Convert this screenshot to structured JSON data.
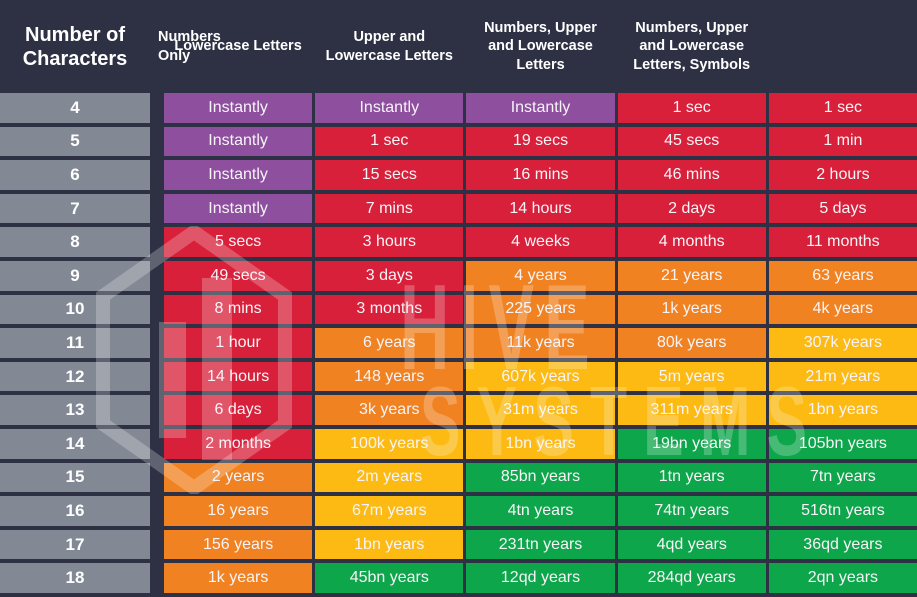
{
  "colors": {
    "background_navy": "#2d3143",
    "char_column_gray": "#828894",
    "instant": "#8d4f9e",
    "danger": "#d8203a",
    "warn": "#f08222",
    "caution": "#fcba12",
    "safe": "#0ea64b",
    "text": "#f7f4f8"
  },
  "watermark": {
    "logo": "hive-hexagon-logo",
    "word1": "HIVE",
    "word2": "SYSTEMS"
  },
  "chart_data": {
    "type": "table",
    "columns": [
      "Number of Characters",
      "Numbers Only",
      "Lowercase Letters",
      "Upper and Lowercase Letters",
      "Numbers, Upper and Lowercase Letters",
      "Numbers, Upper and Lowercase Letters, Symbols"
    ],
    "rows": [
      {
        "chars": "4",
        "cells": [
          {
            "text": "Instantly",
            "level": "instant"
          },
          {
            "text": "Instantly",
            "level": "instant"
          },
          {
            "text": "Instantly",
            "level": "instant"
          },
          {
            "text": "1 sec",
            "level": "danger"
          },
          {
            "text": "1 sec",
            "level": "danger"
          }
        ]
      },
      {
        "chars": "5",
        "cells": [
          {
            "text": "Instantly",
            "level": "instant"
          },
          {
            "text": "1 sec",
            "level": "danger"
          },
          {
            "text": "19 secs",
            "level": "danger"
          },
          {
            "text": "45 secs",
            "level": "danger"
          },
          {
            "text": "1 min",
            "level": "danger"
          }
        ]
      },
      {
        "chars": "6",
        "cells": [
          {
            "text": "Instantly",
            "level": "instant"
          },
          {
            "text": "15 secs",
            "level": "danger"
          },
          {
            "text": "16 mins",
            "level": "danger"
          },
          {
            "text": "46 mins",
            "level": "danger"
          },
          {
            "text": "2 hours",
            "level": "danger"
          }
        ]
      },
      {
        "chars": "7",
        "cells": [
          {
            "text": "Instantly",
            "level": "instant"
          },
          {
            "text": "7 mins",
            "level": "danger"
          },
          {
            "text": "14 hours",
            "level": "danger"
          },
          {
            "text": "2 days",
            "level": "danger"
          },
          {
            "text": "5 days",
            "level": "danger"
          }
        ]
      },
      {
        "chars": "8",
        "cells": [
          {
            "text": "5 secs",
            "level": "danger"
          },
          {
            "text": "3 hours",
            "level": "danger"
          },
          {
            "text": "4 weeks",
            "level": "danger"
          },
          {
            "text": "4 months",
            "level": "danger"
          },
          {
            "text": "11 months",
            "level": "danger"
          }
        ]
      },
      {
        "chars": "9",
        "cells": [
          {
            "text": "49 secs",
            "level": "danger"
          },
          {
            "text": "3 days",
            "level": "danger"
          },
          {
            "text": "4 years",
            "level": "warn"
          },
          {
            "text": "21 years",
            "level": "warn"
          },
          {
            "text": "63 years",
            "level": "warn"
          }
        ]
      },
      {
        "chars": "10",
        "cells": [
          {
            "text": "8 mins",
            "level": "danger"
          },
          {
            "text": "3 months",
            "level": "danger"
          },
          {
            "text": "225 years",
            "level": "warn"
          },
          {
            "text": "1k years",
            "level": "warn"
          },
          {
            "text": "4k years",
            "level": "warn"
          }
        ]
      },
      {
        "chars": "11",
        "cells": [
          {
            "text": "1 hour",
            "level": "danger"
          },
          {
            "text": "6 years",
            "level": "warn"
          },
          {
            "text": "11k years",
            "level": "warn"
          },
          {
            "text": "80k years",
            "level": "warn"
          },
          {
            "text": "307k years",
            "level": "caution"
          }
        ]
      },
      {
        "chars": "12",
        "cells": [
          {
            "text": "14 hours",
            "level": "danger"
          },
          {
            "text": "148 years",
            "level": "warn"
          },
          {
            "text": "607k years",
            "level": "caution"
          },
          {
            "text": "5m years",
            "level": "caution"
          },
          {
            "text": "21m years",
            "level": "caution"
          }
        ]
      },
      {
        "chars": "13",
        "cells": [
          {
            "text": "6 days",
            "level": "danger"
          },
          {
            "text": "3k years",
            "level": "warn"
          },
          {
            "text": "31m years",
            "level": "caution"
          },
          {
            "text": "311m years",
            "level": "caution"
          },
          {
            "text": "1bn years",
            "level": "caution"
          }
        ]
      },
      {
        "chars": "14",
        "cells": [
          {
            "text": "2 months",
            "level": "danger"
          },
          {
            "text": "100k years",
            "level": "caution"
          },
          {
            "text": "1bn years",
            "level": "caution"
          },
          {
            "text": "19bn years",
            "level": "safe"
          },
          {
            "text": "105bn years",
            "level": "safe"
          }
        ]
      },
      {
        "chars": "15",
        "cells": [
          {
            "text": "2 years",
            "level": "warn"
          },
          {
            "text": "2m years",
            "level": "caution"
          },
          {
            "text": "85bn years",
            "level": "safe"
          },
          {
            "text": "1tn years",
            "level": "safe"
          },
          {
            "text": "7tn years",
            "level": "safe"
          }
        ]
      },
      {
        "chars": "16",
        "cells": [
          {
            "text": "16 years",
            "level": "warn"
          },
          {
            "text": "67m years",
            "level": "caution"
          },
          {
            "text": "4tn years",
            "level": "safe"
          },
          {
            "text": "74tn years",
            "level": "safe"
          },
          {
            "text": "516tn years",
            "level": "safe"
          }
        ]
      },
      {
        "chars": "17",
        "cells": [
          {
            "text": "156 years",
            "level": "warn"
          },
          {
            "text": "1bn years",
            "level": "caution"
          },
          {
            "text": "231tn years",
            "level": "safe"
          },
          {
            "text": "4qd years",
            "level": "safe"
          },
          {
            "text": "36qd years",
            "level": "safe"
          }
        ]
      },
      {
        "chars": "18",
        "cells": [
          {
            "text": "1k years",
            "level": "warn"
          },
          {
            "text": "45bn years",
            "level": "safe"
          },
          {
            "text": "12qd years",
            "level": "safe"
          },
          {
            "text": "284qd years",
            "level": "safe"
          },
          {
            "text": "2qn years",
            "level": "safe"
          }
        ]
      }
    ]
  }
}
